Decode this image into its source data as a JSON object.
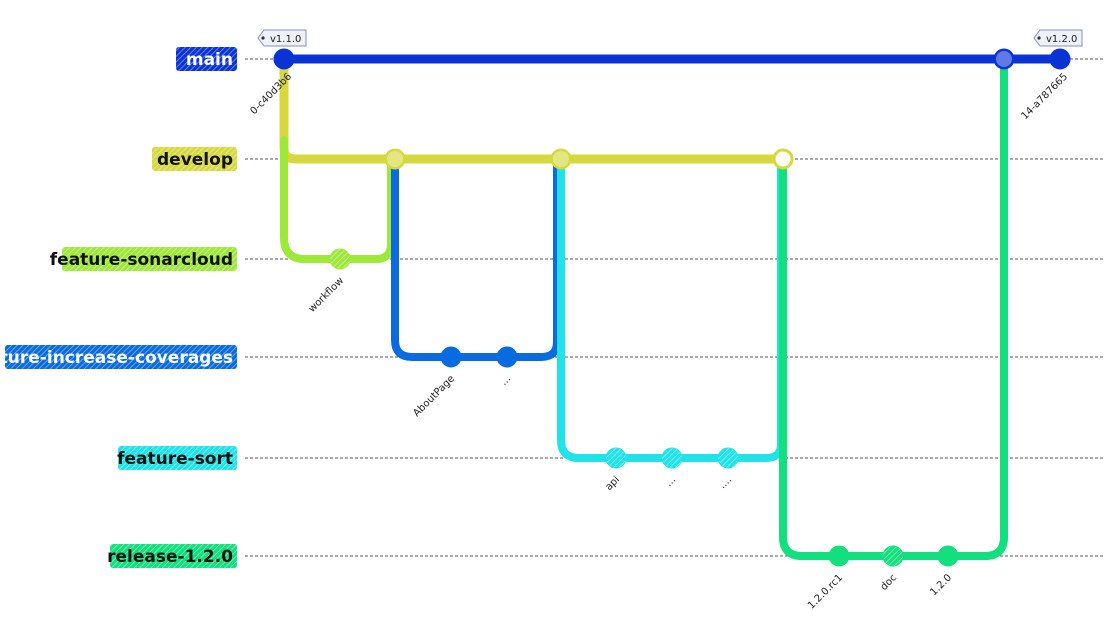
{
  "diagram": {
    "type": "gitgraph",
    "colors": {
      "main": "#0a33d6",
      "develop": "#d6d93e",
      "feature-sonarcloud": "#9ee83a",
      "feature-increase-coverages": "#0a6be0",
      "feature-sort": "#1fe3e8",
      "release-1.2.0": "#12e07e"
    },
    "branches": [
      {
        "id": "main",
        "label": "main"
      },
      {
        "id": "develop",
        "label": "develop"
      },
      {
        "id": "feature-sonarcloud",
        "label": "feature-sonarcloud"
      },
      {
        "id": "feature-increase-coverages",
        "label": "feature-increase-coverages"
      },
      {
        "id": "feature-sort",
        "label": "feature-sort"
      },
      {
        "id": "release-1.2.0",
        "label": "release-1.2.0"
      }
    ],
    "commits": [
      {
        "id": "0-c40d3b6",
        "branch": "main",
        "label": "0-c40d3b6",
        "tag": "v1.1.0"
      },
      {
        "id": "workflow",
        "branch": "feature-sonarcloud",
        "label": "workflow"
      },
      {
        "id": "AboutPage",
        "branch": "feature-increase-coverages",
        "label": "AboutPage"
      },
      {
        "id": "cov2",
        "branch": "feature-increase-coverages",
        "label": "..."
      },
      {
        "id": "api",
        "branch": "feature-sort",
        "label": "api"
      },
      {
        "id": "sort2",
        "branch": "feature-sort",
        "label": "..."
      },
      {
        "id": "sort3",
        "branch": "feature-sort",
        "label": "...."
      },
      {
        "id": "1.2.0.rc1",
        "branch": "release-1.2.0",
        "label": "1.2.0.rc1"
      },
      {
        "id": "doc",
        "branch": "release-1.2.0",
        "label": "doc"
      },
      {
        "id": "1.2.0",
        "branch": "release-1.2.0",
        "label": "1.2.0"
      },
      {
        "id": "14-a787665",
        "branch": "main",
        "label": "14-a787665",
        "tag": "v1.2.0"
      }
    ]
  }
}
